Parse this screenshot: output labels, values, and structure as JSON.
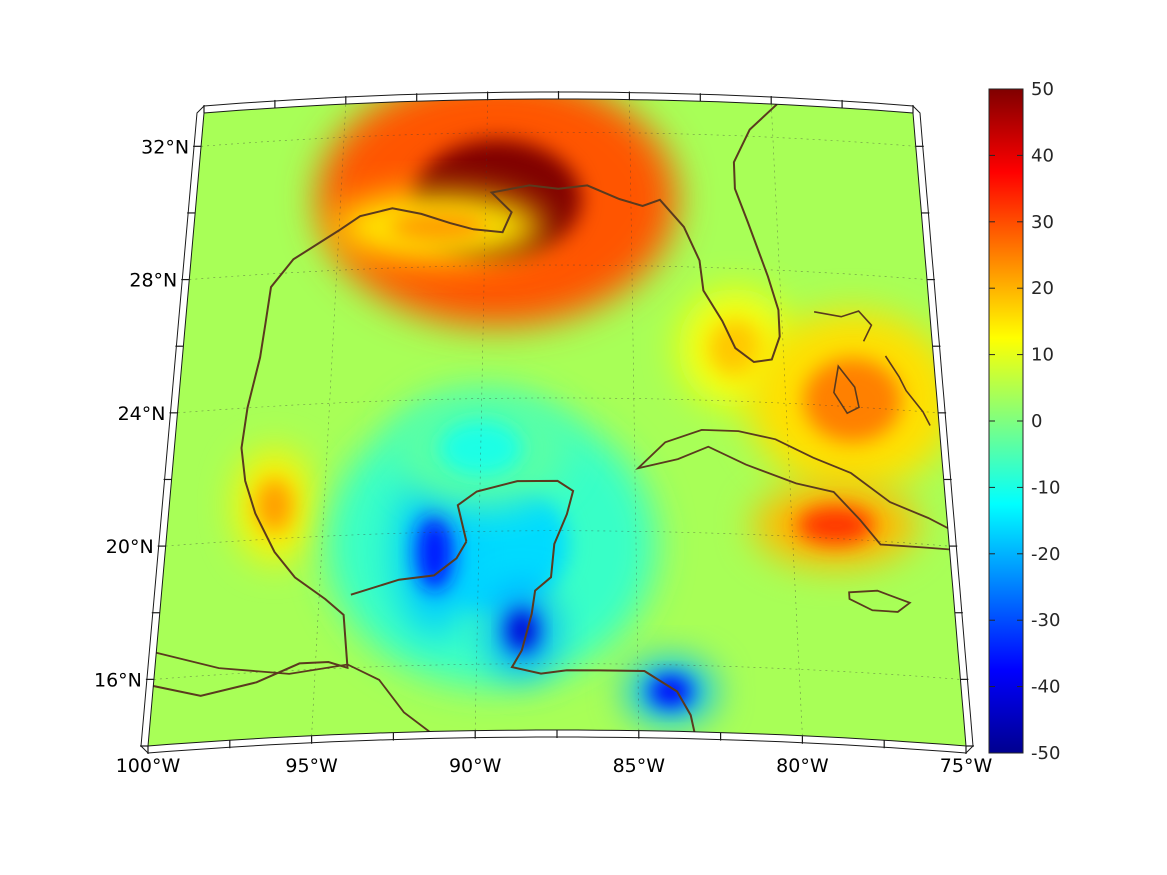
{
  "map": {
    "projection": "lambert-conformal-conic",
    "region": "Gulf of Mexico and Caribbean",
    "lon_range": [
      -100,
      -75
    ],
    "lat_range": [
      14,
      33
    ],
    "grid": true,
    "coastline_color": "#5a3a1e",
    "longitude_labels": [
      "100°W",
      "95°W",
      "90°W",
      "85°W",
      "80°W",
      "75°W"
    ],
    "latitude_labels": [
      "16°N",
      "20°N",
      "24°N",
      "28°N",
      "32°N"
    ],
    "field": {
      "colormap": "jet",
      "background_value": 4,
      "features": [
        {
          "name": "mississippi-delta-maximum",
          "lon": -89.6,
          "lat": 30.0,
          "value": 50
        },
        {
          "name": "louisiana-coast-high",
          "lon": -91.6,
          "lat": 29.2,
          "value": 22
        },
        {
          "name": "tamaulipas-high",
          "lon": -96.6,
          "lat": 21.0,
          "value": 22
        },
        {
          "name": "florida-southwest-high",
          "lon": -81.6,
          "lat": 25.6,
          "value": 18
        },
        {
          "name": "bahamas-high",
          "lon": -77.8,
          "lat": 24.2,
          "value": 25
        },
        {
          "name": "eastern-cuba-high",
          "lon": -78.6,
          "lat": 20.4,
          "value": 32
        },
        {
          "name": "yucatan-low",
          "lon": -89.6,
          "lat": 19.6,
          "value": -16
        },
        {
          "name": "campeche-low",
          "lon": -91.4,
          "lat": 19.4,
          "value": -35
        },
        {
          "name": "belize-low",
          "lon": -88.6,
          "lat": 17.0,
          "value": -42
        },
        {
          "name": "honduras-coast-low",
          "lon": -84.0,
          "lat": 15.2,
          "value": -38
        },
        {
          "name": "central-gulf-low",
          "lon": -90.0,
          "lat": 22.5,
          "value": -10
        }
      ]
    }
  },
  "colorbar": {
    "range": [
      -50,
      50
    ],
    "tick_labels": [
      "50",
      "40",
      "30",
      "20",
      "10",
      "0",
      "-10",
      "-20",
      "-30",
      "-40",
      "-50"
    ]
  }
}
